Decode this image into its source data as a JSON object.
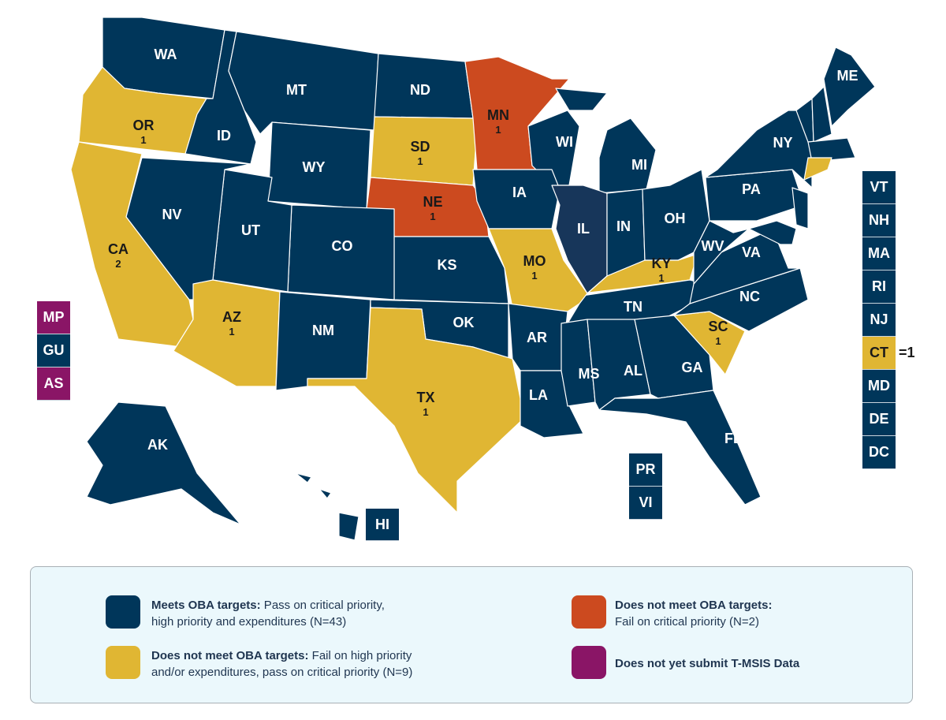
{
  "colors": {
    "meets": "#00365a",
    "fail_high": "#e0b633",
    "fail_critical": "#cc4a1f",
    "no_data": "#8a1566",
    "illinois": "#17365a"
  },
  "states": [
    {
      "abbr": "WA",
      "status": "meets"
    },
    {
      "abbr": "OR",
      "status": "fail_high",
      "count": "1"
    },
    {
      "abbr": "CA",
      "status": "fail_high",
      "count": "2"
    },
    {
      "abbr": "ID",
      "status": "meets"
    },
    {
      "abbr": "NV",
      "status": "meets"
    },
    {
      "abbr": "MT",
      "status": "meets"
    },
    {
      "abbr": "WY",
      "status": "meets"
    },
    {
      "abbr": "UT",
      "status": "meets"
    },
    {
      "abbr": "AZ",
      "status": "fail_high",
      "count": "1"
    },
    {
      "abbr": "CO",
      "status": "meets"
    },
    {
      "abbr": "NM",
      "status": "meets"
    },
    {
      "abbr": "ND",
      "status": "meets"
    },
    {
      "abbr": "SD",
      "status": "fail_high",
      "count": "1"
    },
    {
      "abbr": "NE",
      "status": "fail_critical",
      "count": "1"
    },
    {
      "abbr": "KS",
      "status": "meets"
    },
    {
      "abbr": "OK",
      "status": "meets"
    },
    {
      "abbr": "TX",
      "status": "fail_high",
      "count": "1"
    },
    {
      "abbr": "MN",
      "status": "fail_critical",
      "count": "1"
    },
    {
      "abbr": "IA",
      "status": "meets"
    },
    {
      "abbr": "MO",
      "status": "fail_high",
      "count": "1"
    },
    {
      "abbr": "AR",
      "status": "meets"
    },
    {
      "abbr": "LA",
      "status": "meets"
    },
    {
      "abbr": "WI",
      "status": "meets"
    },
    {
      "abbr": "IL",
      "status": "meets"
    },
    {
      "abbr": "MI",
      "status": "meets"
    },
    {
      "abbr": "IN",
      "status": "meets"
    },
    {
      "abbr": "OH",
      "status": "meets"
    },
    {
      "abbr": "KY",
      "status": "fail_high",
      "count": "1"
    },
    {
      "abbr": "TN",
      "status": "meets"
    },
    {
      "abbr": "MS",
      "status": "meets"
    },
    {
      "abbr": "AL",
      "status": "meets"
    },
    {
      "abbr": "GA",
      "status": "meets"
    },
    {
      "abbr": "FL",
      "status": "meets"
    },
    {
      "abbr": "SC",
      "status": "fail_high",
      "count": "1"
    },
    {
      "abbr": "NC",
      "status": "meets"
    },
    {
      "abbr": "VA",
      "status": "meets"
    },
    {
      "abbr": "WV",
      "status": "meets"
    },
    {
      "abbr": "PA",
      "status": "meets"
    },
    {
      "abbr": "NY",
      "status": "meets"
    },
    {
      "abbr": "ME",
      "status": "meets"
    },
    {
      "abbr": "AK",
      "status": "meets"
    }
  ],
  "east_boxes": [
    {
      "abbr": "VT",
      "status": "meets"
    },
    {
      "abbr": "NH",
      "status": "meets"
    },
    {
      "abbr": "MA",
      "status": "meets"
    },
    {
      "abbr": "RI",
      "status": "meets"
    },
    {
      "abbr": "NJ",
      "status": "meets"
    },
    {
      "abbr": "CT",
      "status": "fail_high",
      "note": "=1"
    },
    {
      "abbr": "MD",
      "status": "meets"
    },
    {
      "abbr": "DE",
      "status": "meets"
    },
    {
      "abbr": "DC",
      "status": "meets"
    }
  ],
  "territory_boxes": [
    {
      "abbr": "MP",
      "status": "no_data"
    },
    {
      "abbr": "GU",
      "status": "meets"
    },
    {
      "abbr": "AS",
      "status": "no_data"
    }
  ],
  "caribbean_boxes": [
    {
      "abbr": "PR",
      "status": "meets"
    },
    {
      "abbr": "VI",
      "status": "meets"
    }
  ],
  "hawaii_box": {
    "abbr": "HI",
    "status": "meets"
  },
  "legend": [
    {
      "status": "meets",
      "bold": "Meets OBA targets:",
      "line1": " Pass on critical priority,",
      "line2": "high priority and expenditures (N=43)"
    },
    {
      "status": "fail_critical",
      "bold": "Does not meet OBA targets:",
      "line1": "",
      "line2": "Fail on critical priority (N=2)"
    },
    {
      "status": "fail_high",
      "bold": "Does not meet OBA targets:",
      "line1": " Fail on high priority",
      "line2": "and/or expenditures, pass on critical priority (N=9)"
    },
    {
      "status": "no_data",
      "bold": "Does not yet submit T-MSIS Data",
      "line1": "",
      "line2": ""
    }
  ]
}
